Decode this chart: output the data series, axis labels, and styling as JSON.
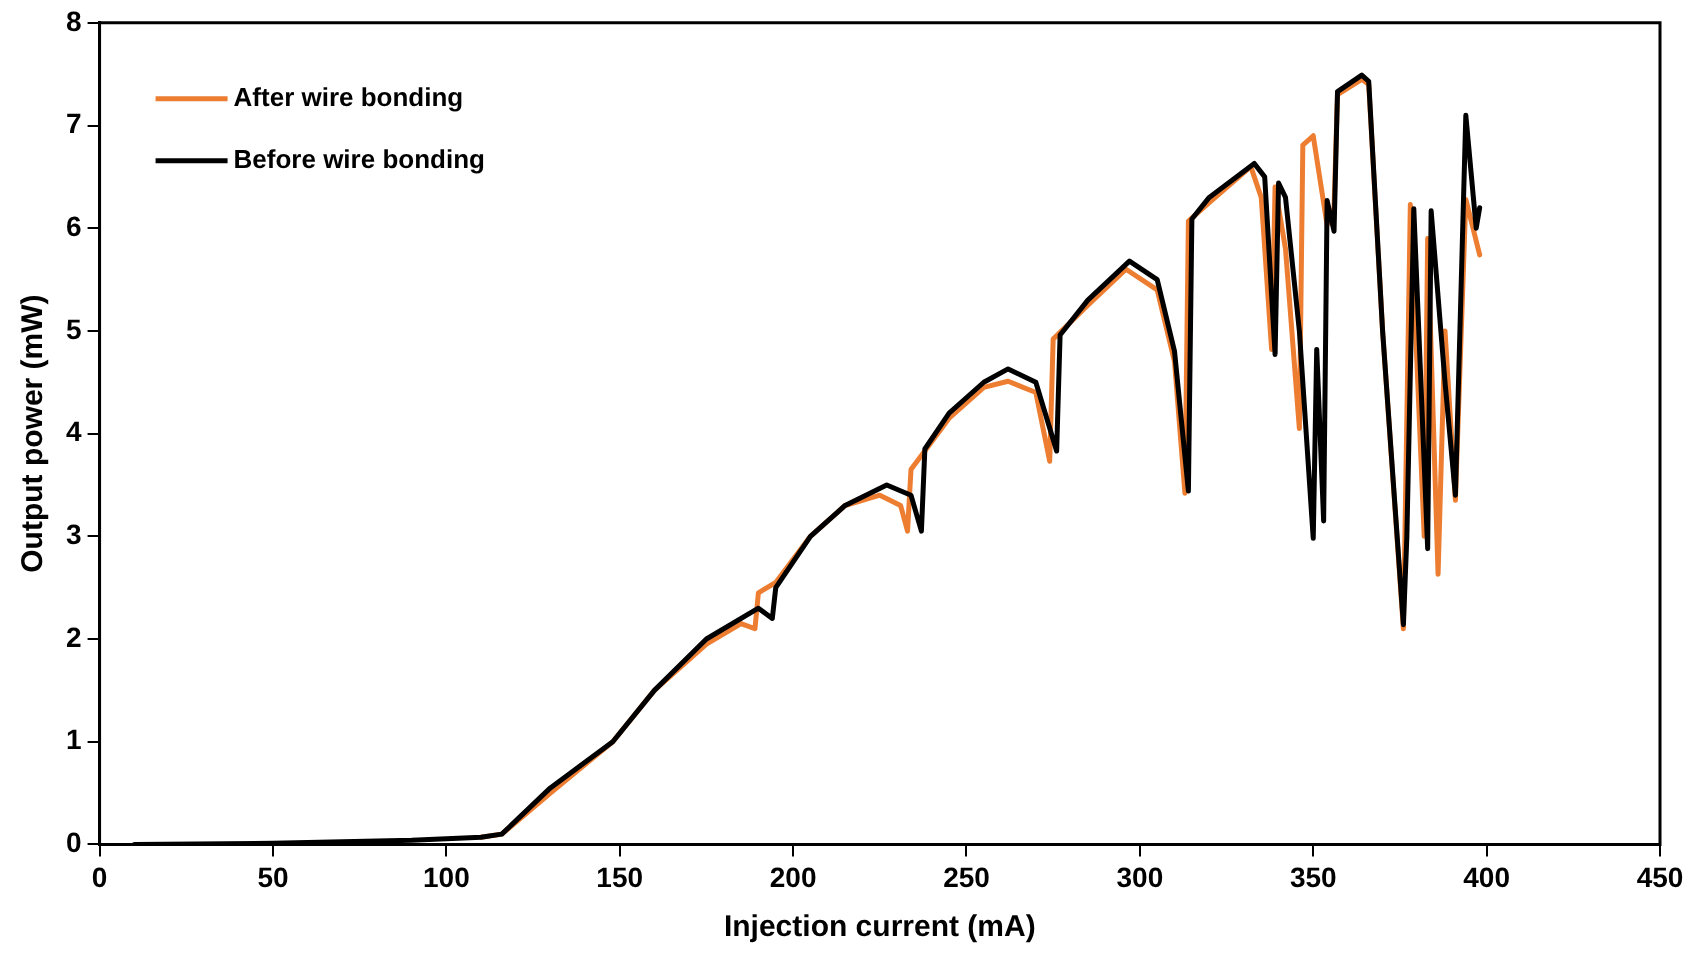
{
  "chart_data": {
    "type": "line",
    "xlabel": "Injection current (mA)",
    "ylabel": "Output power (mW)",
    "xlim": [
      0,
      450
    ],
    "xticks": [
      0,
      50,
      100,
      150,
      200,
      250,
      300,
      350,
      400,
      450
    ],
    "ylim": [
      0,
      8
    ],
    "yticks": [
      0,
      1,
      2,
      3,
      4,
      5,
      6,
      7,
      8
    ],
    "grid": false,
    "legend": "top left",
    "marker": "none",
    "line_style": "solid",
    "series": [
      {
        "name": "After wire bonding",
        "color": "#ed7d31",
        "x": [
          110,
          116,
          130,
          148,
          160,
          175,
          185,
          189,
          190,
          195,
          205,
          215,
          225,
          231,
          233,
          234,
          245,
          255,
          262,
          270,
          274,
          275,
          285,
          296,
          305,
          310,
          313,
          314,
          320,
          332,
          335,
          338,
          339,
          342,
          346,
          347,
          350,
          354,
          356,
          357,
          364,
          366,
          370,
          376,
          378,
          382,
          383,
          386,
          388,
          391,
          394,
          398
        ],
        "values": [
          0.07,
          0.1,
          0.5,
          1.0,
          1.5,
          1.95,
          2.15,
          2.1,
          2.45,
          2.55,
          3.0,
          3.3,
          3.4,
          3.3,
          3.05,
          3.65,
          4.15,
          4.45,
          4.51,
          4.4,
          3.73,
          4.92,
          5.25,
          5.6,
          5.4,
          4.7,
          3.42,
          6.07,
          6.25,
          6.6,
          6.3,
          4.82,
          6.4,
          5.8,
          4.05,
          6.81,
          6.9,
          6.03,
          6.2,
          7.3,
          7.45,
          7.4,
          5.0,
          2.1,
          6.23,
          3.0,
          5.9,
          2.63,
          5.0,
          3.35,
          6.28,
          5.74
        ]
      },
      {
        "name": "Before wire bonding",
        "color": "#000000",
        "x": [
          10,
          50,
          90,
          110,
          116,
          130,
          148,
          160,
          175,
          190,
          194,
          195,
          205,
          215,
          227,
          234,
          237,
          238,
          245,
          255,
          262,
          270,
          276,
          277,
          285,
          297,
          305,
          310,
          314,
          315,
          320,
          333,
          336,
          339,
          340,
          342,
          346,
          350,
          351,
          353,
          354,
          356,
          357,
          364,
          366,
          370,
          376,
          377,
          379,
          383,
          384,
          388,
          391,
          394,
          397,
          398
        ],
        "values": [
          0,
          0.01,
          0.04,
          0.07,
          0.1,
          0.55,
          1.0,
          1.5,
          2.0,
          2.3,
          2.2,
          2.5,
          3.0,
          3.3,
          3.5,
          3.4,
          3.05,
          3.85,
          4.2,
          4.5,
          4.63,
          4.5,
          3.83,
          4.96,
          5.3,
          5.68,
          5.5,
          4.8,
          3.44,
          6.09,
          6.3,
          6.63,
          6.5,
          4.77,
          6.44,
          6.3,
          5.0,
          2.98,
          4.82,
          3.15,
          6.27,
          5.97,
          7.33,
          7.49,
          7.43,
          5.0,
          2.14,
          3.0,
          6.19,
          2.88,
          6.17,
          4.5,
          3.4,
          7.1,
          6.0,
          6.2
        ]
      }
    ]
  }
}
